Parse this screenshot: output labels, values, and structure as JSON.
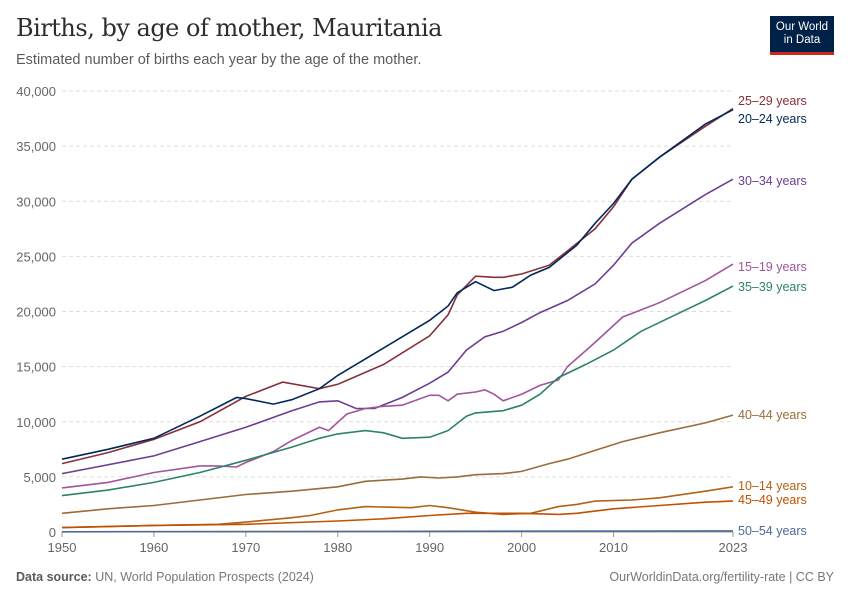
{
  "header": {
    "title": "Births, by age of mother, Mauritania",
    "subtitle": "Estimated number of births each year by the age of the mother.",
    "logo_line1": "Our World",
    "logo_line2": "in Data"
  },
  "footer": {
    "source_label": "Data source:",
    "source": "UN, World Population Prospects (2024)",
    "link": "OurWorldinData.org/fertility-rate | CC BY"
  },
  "chart_data": {
    "type": "line",
    "title": "Births, by age of mother, Mauritania",
    "xlim": [
      1950,
      2023
    ],
    "ylim": [
      0,
      40000
    ],
    "xticks": [
      "1950",
      "1960",
      "1970",
      "1980",
      "1990",
      "2000",
      "2010",
      "2023"
    ],
    "yticks": [
      "0",
      "5,000",
      "10,000",
      "15,000",
      "20,000",
      "25,000",
      "30,000",
      "35,000",
      "40,000"
    ],
    "grid": "horizontal dashed",
    "legend": "right, labels at line ends",
    "series": [
      {
        "name": "25–29 years",
        "color": "#883039",
        "x": [
          1950,
          1955,
          1960,
          1965,
          1970,
          1974,
          1978,
          1980,
          1985,
          1990,
          1992,
          1993,
          1995,
          1997,
          1998,
          2000,
          2003,
          2005,
          2008,
          2010,
          2012,
          2015,
          2020,
          2023
        ],
        "y": [
          6200,
          7200,
          8400,
          10000,
          12300,
          13600,
          13000,
          13400,
          15200,
          17800,
          19700,
          21500,
          23200,
          23100,
          23100,
          23400,
          24200,
          25500,
          27500,
          29500,
          32000,
          34000,
          36800,
          38400
        ]
      },
      {
        "name": "20–24 years",
        "color": "#00295b",
        "x": [
          1950,
          1955,
          1960,
          1965,
          1969,
          1970,
          1973,
          1975,
          1978,
          1980,
          1985,
          1990,
          1992,
          1993,
          1995,
          1997,
          1999,
          2001,
          2003,
          2006,
          2008,
          2010,
          2012,
          2015,
          2020,
          2023
        ],
        "y": [
          6600,
          7500,
          8500,
          10500,
          12200,
          12100,
          11600,
          12000,
          13000,
          14200,
          16700,
          19200,
          20500,
          21700,
          22700,
          21900,
          22200,
          23300,
          24000,
          26000,
          28000,
          29800,
          32000,
          34000,
          37000,
          38300
        ]
      },
      {
        "name": "30–34 years",
        "color": "#6d3e91",
        "x": [
          1950,
          1960,
          1965,
          1970,
          1975,
          1978,
          1980,
          1982,
          1984,
          1987,
          1990,
          1992,
          1994,
          1996,
          1998,
          2000,
          2002,
          2005,
          2008,
          2010,
          2012,
          2015,
          2020,
          2023
        ],
        "y": [
          5300,
          6900,
          8200,
          9500,
          11000,
          11800,
          11900,
          11200,
          11200,
          12200,
          13500,
          14500,
          16500,
          17700,
          18200,
          19000,
          19900,
          21000,
          22500,
          24200,
          26200,
          28000,
          30600,
          32000
        ]
      },
      {
        "name": "15–19 years",
        "color": "#a2559c",
        "x": [
          1950,
          1955,
          1960,
          1965,
          1967,
          1969,
          1970,
          1973,
          1975,
          1978,
          1979,
          1981,
          1983,
          1985,
          1987,
          1990,
          1991,
          1992,
          1993,
          1995,
          1996,
          1997,
          1998,
          2000,
          2002,
          2004,
          2005,
          2008,
          2011,
          2015,
          2020,
          2023
        ],
        "y": [
          4000,
          4500,
          5400,
          6000,
          6000,
          5900,
          6300,
          7300,
          8300,
          9500,
          9200,
          10700,
          11200,
          11400,
          11500,
          12400,
          12400,
          11900,
          12500,
          12700,
          12900,
          12500,
          11900,
          12500,
          13300,
          13800,
          15000,
          17200,
          19500,
          20800,
          22800,
          24300
        ]
      },
      {
        "name": "35–39 years",
        "color": "#2c8465",
        "x": [
          1950,
          1955,
          1960,
          1965,
          1970,
          1975,
          1978,
          1980,
          1983,
          1985,
          1987,
          1990,
          1992,
          1994,
          1995,
          1998,
          2000,
          2002,
          2004,
          2007,
          2010,
          2013,
          2017,
          2020,
          2023
        ],
        "y": [
          3300,
          3800,
          4500,
          5400,
          6500,
          7700,
          8500,
          8900,
          9200,
          9000,
          8500,
          8600,
          9200,
          10500,
          10800,
          11000,
          11500,
          12500,
          14000,
          15200,
          16500,
          18200,
          19800,
          21000,
          22300
        ]
      },
      {
        "name": "40–44 years",
        "color": "#996d39",
        "x": [
          1950,
          1955,
          1960,
          1965,
          1970,
          1975,
          1980,
          1983,
          1987,
          1989,
          1991,
          1993,
          1995,
          1998,
          2000,
          2003,
          2005,
          2008,
          2011,
          2015,
          2020,
          2023
        ],
        "y": [
          1700,
          2100,
          2400,
          2900,
          3400,
          3700,
          4100,
          4600,
          4800,
          5000,
          4900,
          5000,
          5200,
          5300,
          5500,
          6200,
          6600,
          7400,
          8200,
          9000,
          9900,
          10600
        ]
      },
      {
        "name": "10–14 years",
        "color": "#b16214",
        "x": [
          1950,
          1960,
          1967,
          1970,
          1975,
          1977,
          1980,
          1983,
          1988,
          1990,
          1992,
          1995,
          1998,
          2001,
          2004,
          2006,
          2008,
          2012,
          2015,
          2020,
          2023
        ],
        "y": [
          400,
          600,
          700,
          900,
          1300,
          1500,
          2000,
          2300,
          2200,
          2400,
          2200,
          1800,
          1600,
          1700,
          2300,
          2500,
          2800,
          2900,
          3100,
          3700,
          4100
        ]
      },
      {
        "name": "45–49 years",
        "color": "#c15101",
        "x": [
          1950,
          1960,
          1970,
          1980,
          1985,
          1990,
          1994,
          2000,
          2004,
          2006,
          2010,
          2015,
          2020,
          2023
        ],
        "y": [
          400,
          600,
          700,
          1000,
          1200,
          1500,
          1700,
          1700,
          1600,
          1700,
          2100,
          2400,
          2700,
          2800
        ]
      },
      {
        "name": "50–54 years",
        "color": "#4c6a9c",
        "x": [
          1950,
          1990,
          2023
        ],
        "y": [
          20,
          60,
          100
        ]
      }
    ]
  }
}
